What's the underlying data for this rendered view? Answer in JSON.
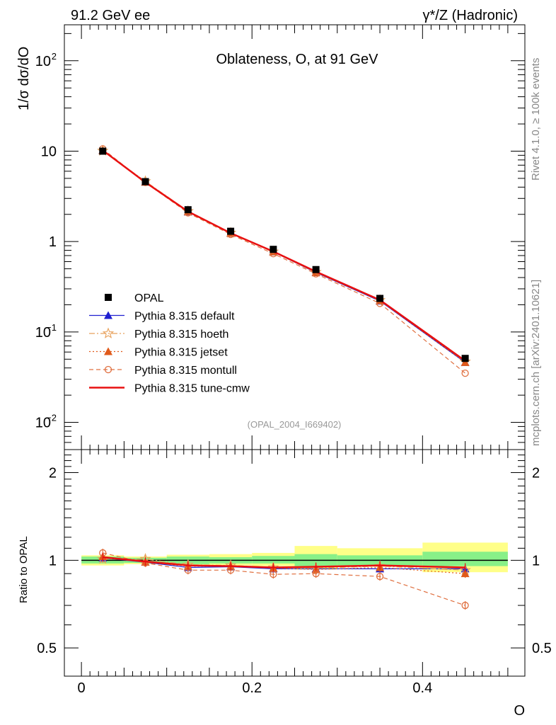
{
  "header": {
    "left": "91.2 GeV ee",
    "right": "γ*/Z (Hadronic)"
  },
  "side": {
    "rivet": "Rivet 4.1.0, ≥ 100k events",
    "mcplots": "mcplots.cern.ch [arXiv:2401.10621]"
  },
  "chart_data": [
    {
      "type": "line",
      "title": "Oblateness, O, at 91 GeV",
      "ylabel": "1/σ  dσ/dO",
      "xlabel": "O",
      "xlim": [
        -0.02,
        0.52
      ],
      "ylim": [
        0.005,
        250
      ],
      "yscale": "log",
      "analysis_tag": "(OPAL_2004_I669402)",
      "x_ticks": [
        "0",
        "0.2",
        "0.4"
      ],
      "y_ticks": [
        "10^-2",
        "10^-1",
        "1",
        "10",
        "10^2"
      ],
      "x": [
        0.025,
        0.075,
        0.125,
        0.175,
        0.225,
        0.275,
        0.35,
        0.45
      ],
      "reference": {
        "name": "OPAL",
        "values": [
          10.0,
          4.6,
          2.25,
          1.3,
          0.82,
          0.49,
          0.235,
          0.051
        ]
      },
      "series": [
        {
          "name": "Pythia 8.315 default",
          "color": "#1f1fd0",
          "marker": "triangle",
          "values": [
            10.2,
            4.55,
            2.13,
            1.24,
            0.77,
            0.455,
            0.22,
            0.046
          ]
        },
        {
          "name": "Pythia 8.315 hoeth",
          "color": "#e8a15c",
          "marker": "star",
          "values": [
            10.1,
            4.65,
            2.17,
            1.25,
            0.775,
            0.46,
            0.225,
            0.047
          ]
        },
        {
          "name": "Pythia 8.315 jetset",
          "color": "#e05a1a",
          "marker": "triangle",
          "values": [
            10.15,
            4.55,
            2.15,
            1.24,
            0.77,
            0.455,
            0.222,
            0.046
          ]
        },
        {
          "name": "Pythia 8.315 montull",
          "color": "#e07040",
          "marker": "circle",
          "values": [
            10.6,
            4.5,
            2.08,
            1.2,
            0.735,
            0.44,
            0.207,
            0.035
          ]
        },
        {
          "name": "Pythia 8.315 tune-cmw",
          "color": "#e81010",
          "marker": "none",
          "values": [
            10.2,
            4.52,
            2.15,
            1.24,
            0.775,
            0.465,
            0.226,
            0.048
          ]
        }
      ]
    },
    {
      "type": "line",
      "ylabel": "Ratio to OPAL",
      "xlabel": "O",
      "yscale": "log",
      "ylim": [
        0.4,
        2.4
      ],
      "y_ticks": [
        "0.5",
        "1",
        "2"
      ],
      "x_edges": [
        0.0,
        0.05,
        0.1,
        0.15,
        0.2,
        0.25,
        0.3,
        0.4,
        0.5
      ],
      "band_inner": [
        [
          0.975,
          1.03
        ],
        [
          0.98,
          1.02
        ],
        [
          0.97,
          1.03
        ],
        [
          0.975,
          1.025
        ],
        [
          0.975,
          1.035
        ],
        [
          0.955,
          1.05
        ],
        [
          0.96,
          1.04
        ],
        [
          0.955,
          1.07
        ]
      ],
      "band_outer": [
        [
          0.96,
          1.04
        ],
        [
          0.97,
          1.03
        ],
        [
          0.96,
          1.045
        ],
        [
          0.96,
          1.05
        ],
        [
          0.955,
          1.06
        ],
        [
          0.93,
          1.12
        ],
        [
          0.95,
          1.1
        ],
        [
          0.91,
          1.15
        ]
      ],
      "x": [
        0.025,
        0.075,
        0.125,
        0.175,
        0.225,
        0.275,
        0.35,
        0.45
      ],
      "series": [
        {
          "name": "Pythia 8.315 default",
          "values": [
            1.02,
            0.985,
            0.945,
            0.95,
            0.935,
            0.935,
            0.935,
            0.935
          ]
        },
        {
          "name": "Pythia 8.315 hoeth",
          "values": [
            1.01,
            1.01,
            0.965,
            0.96,
            0.945,
            0.94,
            0.955,
            0.925
          ]
        },
        {
          "name": "Pythia 8.315 jetset",
          "values": [
            1.03,
            0.985,
            0.955,
            0.955,
            0.94,
            0.93,
            0.945,
            0.9
          ]
        },
        {
          "name": "Pythia 8.315 montull",
          "values": [
            1.06,
            0.98,
            0.925,
            0.925,
            0.895,
            0.9,
            0.88,
            0.7
          ]
        },
        {
          "name": "Pythia 8.315 tune-cmw",
          "values": [
            1.025,
            0.99,
            0.96,
            0.955,
            0.945,
            0.95,
            0.96,
            0.945
          ]
        }
      ]
    }
  ]
}
